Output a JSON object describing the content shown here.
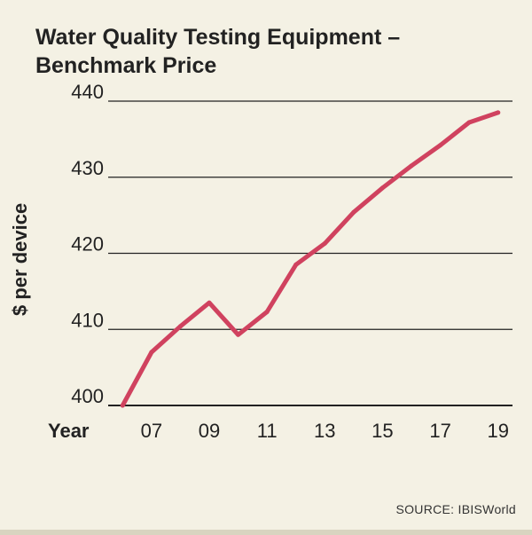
{
  "title_line1": "Water Quality Testing Equipment –",
  "title_line2": "Benchmark Price",
  "source": "SOURCE: IBISWorld",
  "colors": {
    "line": "#d0425f",
    "grid": "#222222",
    "background": "#f4f1e4"
  },
  "chart_data": {
    "type": "line",
    "title": "Water Quality Testing Equipment – Benchmark Price",
    "xlabel": "Year",
    "ylabel": "$ per device",
    "x": [
      6,
      7,
      8,
      9,
      10,
      11,
      12,
      13,
      14,
      15,
      16,
      17,
      18,
      19
    ],
    "xlim": [
      5.5,
      19.5
    ],
    "x_tick_values": [
      7,
      9,
      11,
      13,
      15,
      17,
      19
    ],
    "x_tick_labels": [
      "07",
      "09",
      "11",
      "13",
      "15",
      "17",
      "19"
    ],
    "ylim": [
      400,
      440
    ],
    "y_ticks": [
      400,
      410,
      420,
      430,
      440
    ],
    "series": [
      {
        "name": "Benchmark Price",
        "values": [
          400.0,
          407.0,
          410.4,
          413.5,
          409.3,
          412.3,
          418.5,
          421.3,
          425.4,
          428.6,
          431.5,
          434.2,
          437.2,
          438.5
        ]
      }
    ],
    "grid": true
  }
}
